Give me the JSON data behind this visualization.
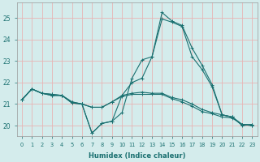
{
  "title": "",
  "xlabel": "Humidex (Indice chaleur)",
  "ylabel": "",
  "background_color": "#d4ecec",
  "grid_color": "#e8b4b4",
  "line_color": "#1a7070",
  "xlim": [
    -0.5,
    23.5
  ],
  "ylim": [
    19.5,
    25.7
  ],
  "yticks": [
    20,
    21,
    22,
    23,
    24,
    25
  ],
  "xticks": [
    0,
    1,
    2,
    3,
    4,
    5,
    6,
    7,
    8,
    9,
    10,
    11,
    12,
    13,
    14,
    15,
    16,
    17,
    18,
    19,
    20,
    21,
    22,
    23
  ],
  "curves": [
    [
      21.2,
      21.7,
      21.5,
      21.4,
      21.4,
      21.1,
      21.0,
      19.65,
      20.1,
      20.2,
      20.6,
      22.2,
      23.05,
      23.2,
      25.25,
      24.85,
      24.65,
      23.6,
      22.8,
      21.9,
      20.5,
      20.4,
      20.05,
      20.05
    ],
    [
      21.2,
      21.7,
      21.5,
      21.4,
      21.4,
      21.1,
      21.0,
      19.65,
      20.1,
      20.2,
      21.4,
      22.0,
      22.2,
      23.2,
      24.95,
      24.8,
      24.6,
      23.2,
      22.6,
      21.8,
      20.5,
      20.4,
      20.0,
      20.05
    ],
    [
      21.2,
      21.7,
      21.5,
      21.45,
      21.4,
      21.05,
      21.0,
      20.85,
      20.85,
      21.1,
      21.4,
      21.5,
      21.55,
      21.5,
      21.5,
      21.3,
      21.2,
      21.0,
      20.75,
      20.6,
      20.5,
      20.4,
      20.05,
      20.0
    ],
    [
      21.2,
      21.7,
      21.5,
      21.45,
      21.4,
      21.05,
      21.0,
      20.85,
      20.85,
      21.1,
      21.35,
      21.45,
      21.45,
      21.45,
      21.45,
      21.25,
      21.1,
      20.9,
      20.65,
      20.55,
      20.4,
      20.35,
      20.05,
      20.0
    ]
  ]
}
